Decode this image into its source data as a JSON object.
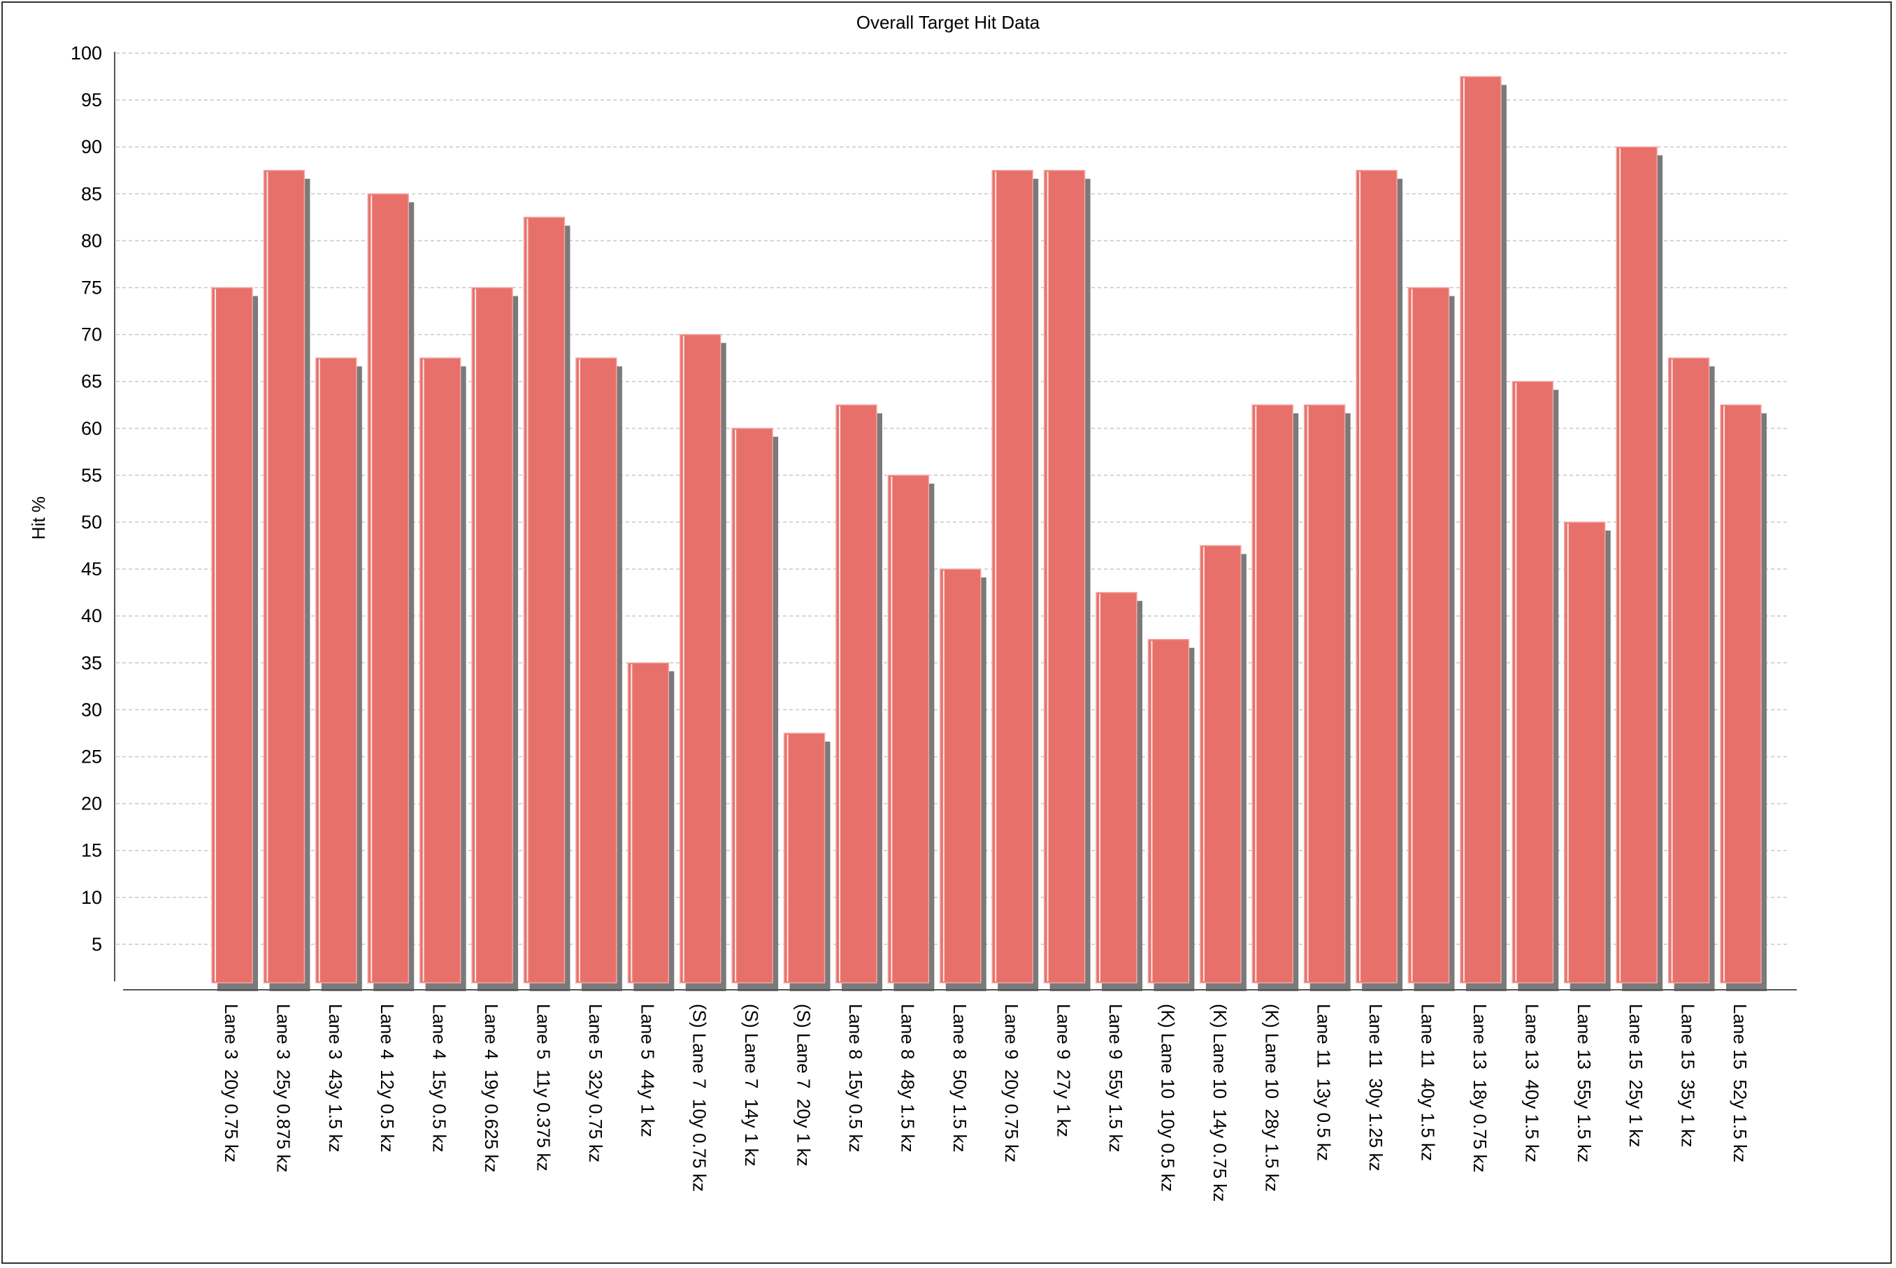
{
  "chart_data": {
    "type": "bar",
    "title": "Overall Target Hit Data",
    "xlabel": "",
    "ylabel": "Hit %",
    "ylim": [
      0,
      100
    ],
    "yticks": [
      5,
      10,
      15,
      20,
      25,
      30,
      35,
      40,
      45,
      50,
      55,
      60,
      65,
      70,
      75,
      80,
      85,
      90,
      95,
      100
    ],
    "grid": true,
    "legend": "none",
    "bar_color": "#e8706a",
    "shadow_color": "#7a7a7a",
    "categories": [
      "Lane 3  20y 0.75 kz",
      "Lane 3  25y 0.875 kz",
      "Lane 3  43y 1.5 kz",
      "Lane 4  12y 0.5 kz",
      "Lane 4  15y 0.5 kz",
      "Lane 4  19y 0.625 kz",
      "Lane 5  11y 0.375 kz",
      "Lane 5  32y 0.75 kz",
      "Lane 5  44y 1 kz",
      "(S) Lane 7  10y 0.75 kz",
      "(S) Lane 7  14y 1 kz",
      "(S) Lane 7  20y 1 kz",
      "Lane 8  15y 0.5 kz",
      "Lane 8  48y 1.5 kz",
      "Lane 8  50y 1.5 kz",
      "Lane 9  20y 0.75 kz",
      "Lane 9  27y 1 kz",
      "Lane 9  55y 1.5 kz",
      "(K) Lane 10  10y 0.5 kz",
      "(K) Lane 10  14y 0.75 kz",
      "(K) Lane 10  28y 1.5 kz",
      "Lane 11  13y 0.5 kz",
      "Lane 11  30y 1.25 kz",
      "Lane 11  40y 1.5 kz",
      "Lane 13  18y 0.75 kz",
      "Lane 13  40y 1.5 kz",
      "Lane 13  55y 1.5 kz",
      "Lane 15  25y 1 kz",
      "Lane 15  35y 1 kz",
      "Lane 15  52y 1.5 kz"
    ],
    "values": [
      75,
      87.5,
      67.5,
      85,
      67.5,
      75,
      82.5,
      67.5,
      35,
      70,
      60,
      27.5,
      62.5,
      55,
      45,
      87.5,
      87.5,
      42.5,
      37.5,
      47.5,
      62.5,
      62.5,
      87.5,
      75,
      97.5,
      65,
      50,
      90,
      67.5,
      62.5
    ]
  }
}
